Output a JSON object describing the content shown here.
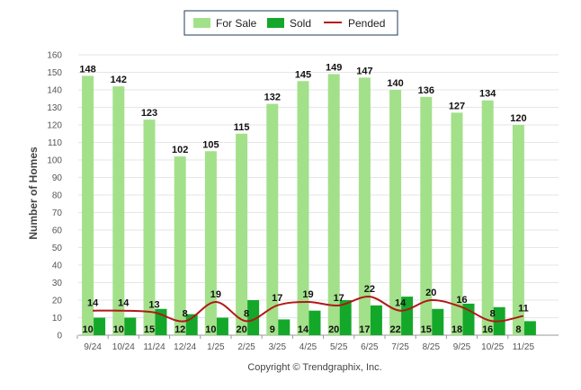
{
  "chart_data": {
    "type": "bar",
    "title": "",
    "xlabel": "",
    "ylabel": "Number of Homes",
    "ylim": [
      0,
      160
    ],
    "ytick_step": 10,
    "grid": true,
    "legend_position": "top-center",
    "categories": [
      "9/24",
      "10/24",
      "11/24",
      "12/24",
      "1/25",
      "2/25",
      "3/25",
      "4/25",
      "5/25",
      "6/25",
      "7/25",
      "8/25",
      "9/25",
      "10/25",
      "11/25"
    ],
    "series": [
      {
        "name": "For Sale",
        "type": "bar",
        "color": "#a3e08a",
        "values": [
          148,
          142,
          123,
          102,
          105,
          115,
          132,
          145,
          149,
          147,
          140,
          136,
          127,
          134,
          120
        ]
      },
      {
        "name": "Sold",
        "type": "bar",
        "color": "#14a82a",
        "values": [
          10,
          10,
          15,
          12,
          10,
          20,
          9,
          14,
          20,
          17,
          22,
          15,
          18,
          16,
          8
        ]
      },
      {
        "name": "Pended",
        "type": "line",
        "color": "#b01818",
        "values": [
          14,
          14,
          13,
          8,
          19,
          8,
          17,
          19,
          17,
          22,
          14,
          20,
          16,
          8,
          11
        ]
      }
    ]
  },
  "footer": {
    "copyright": "Copyright © Trendgraphix, Inc."
  }
}
